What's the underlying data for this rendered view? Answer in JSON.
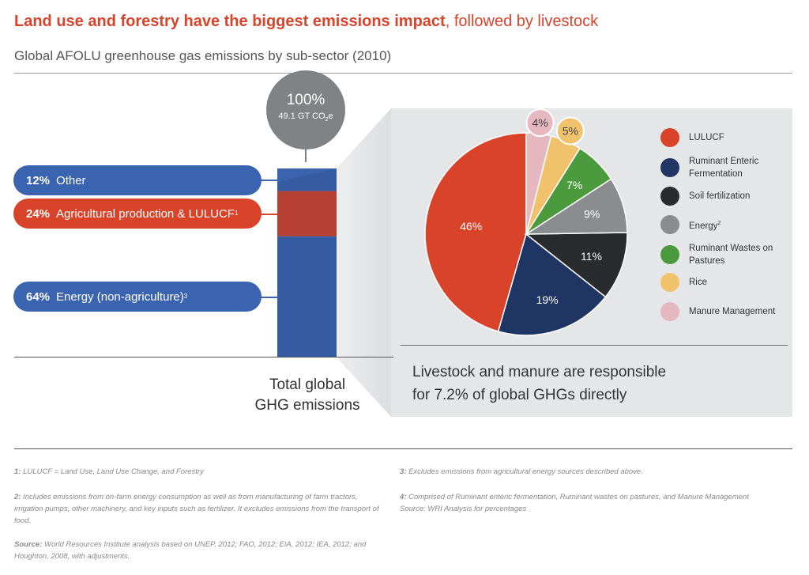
{
  "header": {
    "title_bold": "Land use and forestry have the biggest emissions impact",
    "title_rest": ", followed by livestock",
    "subtitle": "Global AFOLU greenhouse gas emissions by sub-sector (2010)"
  },
  "total": {
    "pct": "100%",
    "value_prefix": "49.1 GT CO",
    "value_sub": "2",
    "value_suffix": "e",
    "label_line1": "Total global",
    "label_line2": "GHG emissions"
  },
  "pills": [
    {
      "pct": "12%",
      "label": "Other",
      "sup": "",
      "color": "#3a64b0"
    },
    {
      "pct": "24%",
      "label": "Agricultural production & LULUCF",
      "sup": "1",
      "color": "#d8432a"
    },
    {
      "pct": "64%",
      "label": "Energy (non-agriculture)",
      "sup": "3",
      "color": "#3a64b0"
    }
  ],
  "panel": {
    "caption_line1": "Livestock and manure are responsible",
    "caption_line2": "for 7.2% of global GHGs directly"
  },
  "legend": [
    {
      "label": "LULUCF",
      "sup": "",
      "color": "#d8432a"
    },
    {
      "label": "Ruminant Enteric Fermentation",
      "sup": "",
      "color": "#1f3563"
    },
    {
      "label": "Soil fertilization",
      "sup": "",
      "color": "#2a2b2f"
    },
    {
      "label": "Energy",
      "sup": "2",
      "color": "#8b8c8f"
    },
    {
      "label": "Ruminant Wastes on Pastures",
      "sup": "",
      "color": "#4c9a3e"
    },
    {
      "label": "Rice",
      "sup": "",
      "color": "#f0c26b"
    },
    {
      "label": "Manure Management",
      "sup": "",
      "color": "#e5b7c0"
    }
  ],
  "footnotes": {
    "fn1_key": "1:",
    "fn1_text": " LULUCF = Land Use, Land Use Change, and Forestry",
    "fn2_key": "2:",
    "fn2_text": " Includes emissions from on-farm energy consumption as well as from manufacturing of farm tractors, irrigation pumps, other machinery, and key inputs such as fertilizer. It excludes emissions from the transport of food.",
    "source_key": "Source:",
    "source_text": " World Resources Institute analysis based on UNEP, 2012; FAO, 2012; EIA, 2012; IEA, 2012; and Houghton, 2008, with adjustments.",
    "fn3_key": "3:",
    "fn3_text": " Excludes emissions from agricultural energy sources described above.",
    "fn4_key": "4:",
    "fn4_text": " Comprised of Ruminant enteric fermentation, Ruminant wastes on pastures, and Manure Management Source: WRI Analysis for percentages"
  },
  "chart_data": [
    {
      "type": "bar",
      "stacked": true,
      "categories": [
        "Total global GHG emissions"
      ],
      "series": [
        {
          "name": "Energy (non-agriculture)",
          "values": [
            64
          ],
          "color": "#3a64b0"
        },
        {
          "name": "Agricultural production & LULUCF",
          "values": [
            24
          ],
          "color": "#d8432a"
        },
        {
          "name": "Other",
          "values": [
            12
          ],
          "color": "#3a64b0"
        }
      ],
      "ylim": [
        0,
        100
      ],
      "total_label": "100%"
    },
    {
      "type": "pie",
      "categories": [
        "LULUCF",
        "Ruminant Enteric Fermentation",
        "Soil fertilization",
        "Energy",
        "Ruminant Wastes on Pastures",
        "Rice",
        "Manure Management"
      ],
      "values": [
        46,
        19,
        11,
        9,
        7,
        5,
        4
      ],
      "labels": [
        "46%",
        "19%",
        "11%",
        "9%",
        "7%",
        "5%",
        "4%"
      ],
      "colors": [
        "#d8432a",
        "#1f3563",
        "#2a2b2f",
        "#8b8c8f",
        "#4c9a3e",
        "#f0c26b",
        "#e5b7c0"
      ],
      "legend_position": "right"
    }
  ]
}
